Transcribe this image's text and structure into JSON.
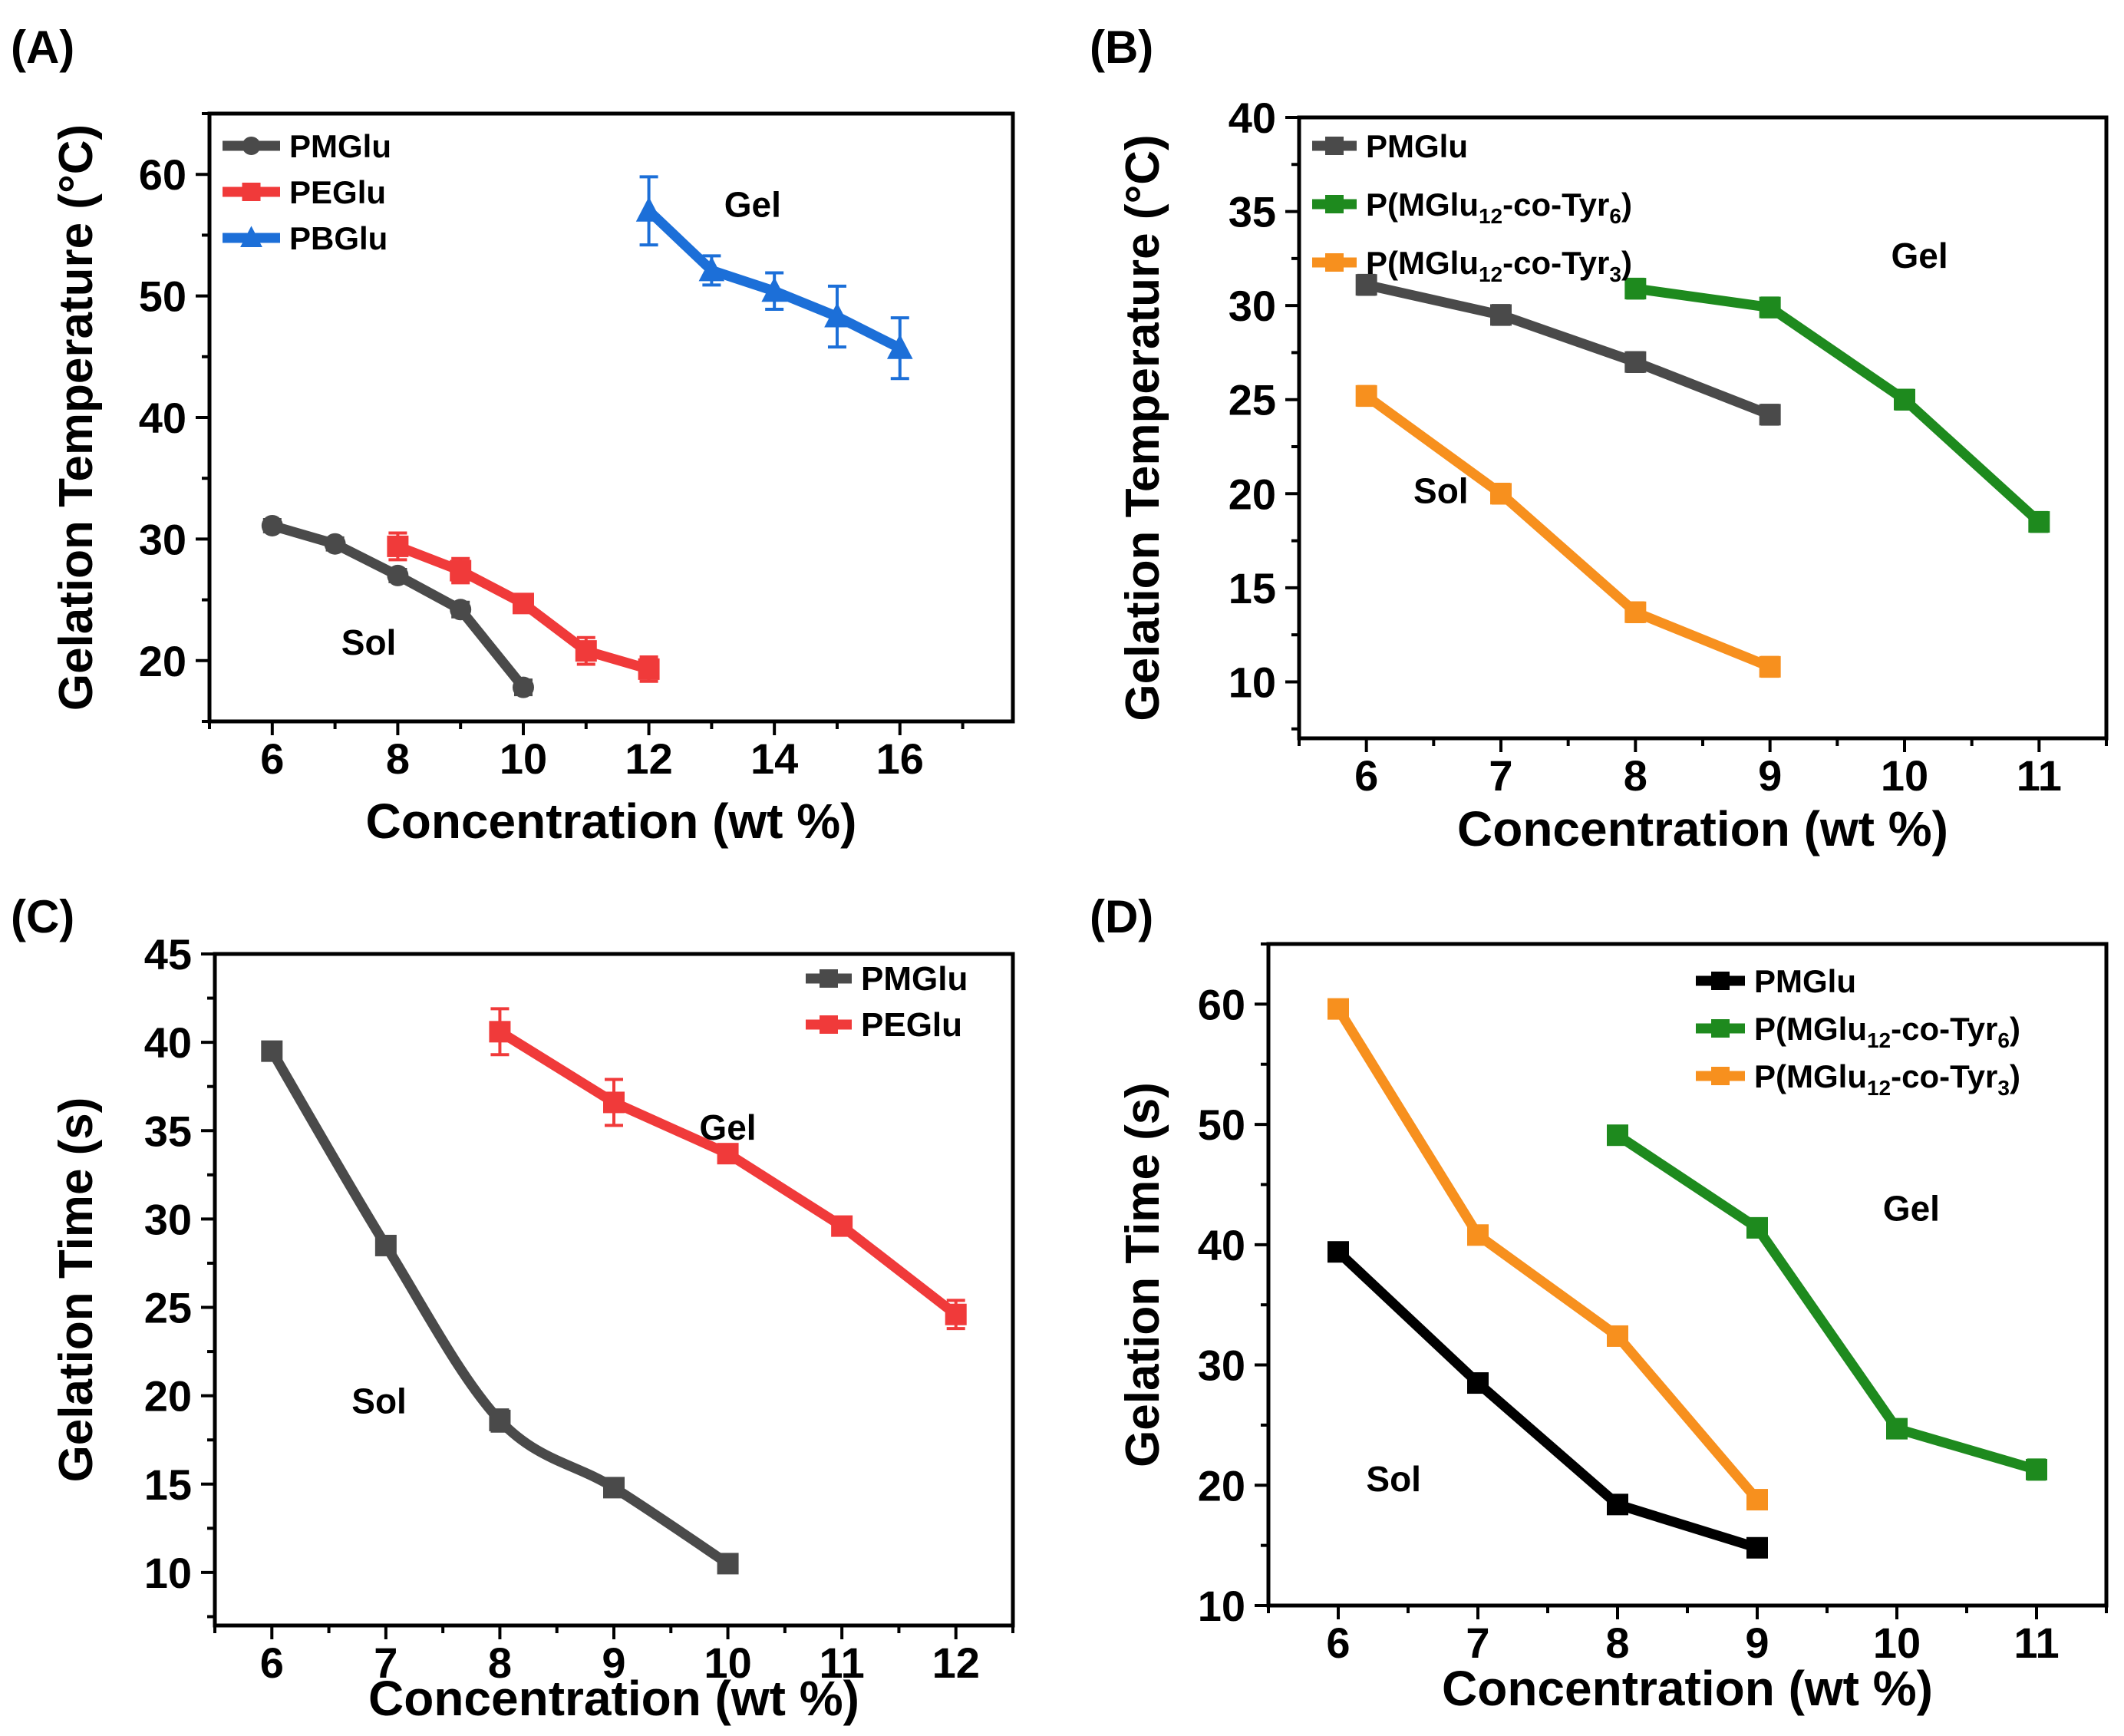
{
  "figure": {
    "description_free": true
  },
  "chart_data": [
    {
      "panel_label": "(A)",
      "type": "line",
      "xlabel": "Concentration (wt %)",
      "ylabel": "Gelation Temperature (°C)",
      "xlim": [
        5,
        17.8
      ],
      "ylim": [
        15,
        65
      ],
      "xticks": [
        6,
        8,
        10,
        12,
        14,
        16
      ],
      "yticks": [
        20,
        30,
        40,
        50,
        60
      ],
      "annotations": [
        {
          "text": "Gel",
          "x": 13.2,
          "y": 56.5
        },
        {
          "text": "Sol",
          "x": 7.1,
          "y": 20.5
        }
      ],
      "legend_position": "top-left",
      "series": [
        {
          "name": "PMGlu",
          "color": "#4a4a4a",
          "marker": "circle",
          "x": [
            6,
            7,
            8,
            9,
            10
          ],
          "y": [
            31.1,
            29.6,
            27.0,
            24.2,
            17.8
          ],
          "err": [
            0.5,
            0.5,
            0.5,
            0.6,
            0.6
          ]
        },
        {
          "name": "PEGlu",
          "color": "#f03a3a",
          "marker": "square",
          "x": [
            8,
            9,
            10,
            11,
            12
          ],
          "y": [
            29.4,
            27.4,
            24.7,
            20.8,
            19.3
          ],
          "err": [
            1.1,
            1.0,
            0.7,
            1.1,
            1.0
          ]
        },
        {
          "name": "PBGlu",
          "color": "#1c6fd8",
          "marker": "triangle",
          "x": [
            12,
            13,
            14,
            15,
            16
          ],
          "y": [
            57.0,
            52.1,
            50.4,
            48.3,
            45.7
          ],
          "err": [
            2.8,
            1.2,
            1.5,
            2.5,
            2.5
          ]
        }
      ]
    },
    {
      "panel_label": "(B)",
      "type": "line",
      "xlabel": "Concentration (wt %)",
      "ylabel": "Gelation Temperature (°C)",
      "xlim": [
        5.5,
        11.5
      ],
      "ylim": [
        7,
        40
      ],
      "xticks": [
        6,
        7,
        8,
        9,
        10,
        11
      ],
      "yticks": [
        10,
        15,
        20,
        25,
        30,
        35,
        40
      ],
      "annotations": [
        {
          "text": "Gel",
          "x": 9.9,
          "y": 32.0
        },
        {
          "text": "Sol",
          "x": 6.35,
          "y": 19.5
        }
      ],
      "legend_position": "top-left",
      "series": [
        {
          "name": "PMGlu",
          "label_main": "PMGlu",
          "label_sub": "",
          "label_end": "",
          "color": "#4a4a4a",
          "marker": "square",
          "x": [
            6,
            7,
            8,
            9
          ],
          "y": [
            31.1,
            29.5,
            27.0,
            24.2
          ],
          "err": [
            0.5,
            0.5,
            0.5,
            0.5
          ]
        },
        {
          "name": "P(MGlu12-co-Tyr6)",
          "label_main": "P(MGlu",
          "label_sub": "12",
          "label_mid": "-co-Tyr",
          "label_sub2": "6",
          "label_end": ")",
          "color": "#1e8a1e",
          "marker": "square",
          "x": [
            8,
            9,
            10,
            11
          ],
          "y": [
            30.9,
            29.9,
            25.0,
            18.5
          ],
          "err": [
            0.5,
            0.5,
            0.5,
            0.5
          ]
        },
        {
          "name": "P(MGlu12-co-Tyr3)",
          "label_main": "P(MGlu",
          "label_sub": "12",
          "label_mid": "-co-Tyr",
          "label_sub2": "3",
          "label_end": ")",
          "color": "#f7901e",
          "marker": "square",
          "x": [
            6,
            7,
            8,
            9
          ],
          "y": [
            25.2,
            20.0,
            13.7,
            10.8
          ],
          "err": [
            0.5,
            0.5,
            0.5,
            0.5
          ]
        }
      ]
    },
    {
      "panel_label": "(C)",
      "type": "line",
      "xlabel": "Concentration (wt %)",
      "ylabel": "Gelation Time (s)",
      "xlim": [
        5.5,
        12.5
      ],
      "ylim": [
        7,
        45
      ],
      "xticks": [
        6,
        7,
        8,
        9,
        10,
        11,
        12
      ],
      "yticks": [
        10,
        15,
        20,
        25,
        30,
        35,
        40,
        45
      ],
      "annotations": [
        {
          "text": "Gel",
          "x": 9.75,
          "y": 34.5
        },
        {
          "text": "Sol",
          "x": 6.7,
          "y": 19.0
        }
      ],
      "legend_position": "top-right",
      "series": [
        {
          "name": "PMGlu",
          "color": "#4a4a4a",
          "marker": "square",
          "smooth": true,
          "x": [
            6,
            7,
            8,
            9,
            10
          ],
          "y": [
            39.5,
            28.5,
            18.6,
            14.8,
            10.5
          ],
          "err": [
            0.5,
            0.5,
            0.6,
            0.5,
            0.5
          ]
        },
        {
          "name": "PEGlu",
          "color": "#f03a3a",
          "marker": "square",
          "x": [
            8,
            9,
            10,
            11,
            12
          ],
          "y": [
            40.6,
            36.6,
            33.7,
            29.6,
            24.6
          ],
          "err": [
            1.3,
            1.3,
            0.5,
            0.5,
            0.8
          ]
        }
      ]
    },
    {
      "panel_label": "(D)",
      "type": "line",
      "xlabel": "Concentration (wt %)",
      "ylabel": "Gelation Time (s)",
      "xlim": [
        5.5,
        11.5
      ],
      "ylim": [
        10,
        65
      ],
      "xticks": [
        6,
        7,
        8,
        9,
        10,
        11
      ],
      "yticks": [
        10,
        20,
        30,
        40,
        50,
        60
      ],
      "annotations": [
        {
          "text": "Gel",
          "x": 9.9,
          "y": 42.0
        },
        {
          "text": "Sol",
          "x": 6.2,
          "y": 19.5
        }
      ],
      "legend_position": "top-right",
      "series": [
        {
          "name": "PMGlu",
          "label_main": "PMGlu",
          "label_sub": "",
          "label_end": "",
          "color": "#000000",
          "marker": "square",
          "x": [
            6,
            7,
            8,
            9
          ],
          "y": [
            39.4,
            28.5,
            18.4,
            14.8
          ],
          "err": [
            0.6,
            0.6,
            0.6,
            0.6
          ]
        },
        {
          "name": "P(MGlu12-co-Tyr6)",
          "label_main": "P(MGlu",
          "label_sub": "12",
          "label_mid": "-co-Tyr",
          "label_sub2": "6",
          "label_end": ")",
          "color": "#1e8a1e",
          "marker": "square",
          "x": [
            8,
            9,
            10,
            11
          ],
          "y": [
            49.1,
            41.4,
            24.7,
            21.3
          ],
          "err": [
            0.7,
            0.7,
            0.6,
            0.8
          ]
        },
        {
          "name": "P(MGlu12-co-Tyr3)",
          "label_main": "P(MGlu",
          "label_sub": "12",
          "label_mid": "-co-Tyr",
          "label_sub2": "3",
          "label_end": ")",
          "color": "#f7901e",
          "marker": "square",
          "x": [
            6,
            7,
            8,
            9
          ],
          "y": [
            59.6,
            40.8,
            32.4,
            18.8
          ],
          "err": [
            0.6,
            0.6,
            0.7,
            0.7
          ]
        }
      ]
    }
  ]
}
